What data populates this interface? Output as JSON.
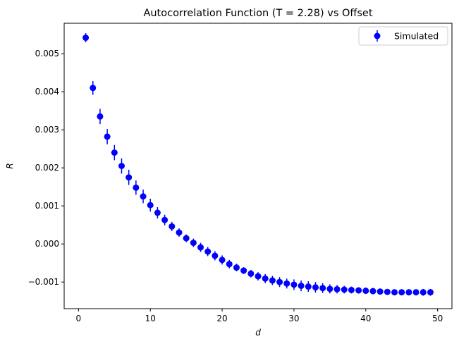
{
  "chart_data": {
    "type": "scatter",
    "title": "Autocorrelation Function (T = 2.28) vs Offset",
    "xlabel": "d",
    "ylabel": "R",
    "xlim": [
      -2,
      52
    ],
    "ylim": [
      -0.0017,
      0.0058
    ],
    "xticks": [
      0,
      10,
      20,
      30,
      40,
      50
    ],
    "yticks": [
      -0.001,
      0.0,
      0.001,
      0.002,
      0.003,
      0.004,
      0.005
    ],
    "xtick_labels": [
      "0",
      "10",
      "20",
      "30",
      "40",
      "50"
    ],
    "ytick_labels": [
      "−0.001",
      "0.000",
      "0.001",
      "0.002",
      "0.003",
      "0.004",
      "0.005"
    ],
    "legend": {
      "position": "top-right",
      "entries": [
        "Simulated"
      ]
    },
    "grid": false,
    "color": "#0000ff",
    "series": [
      {
        "name": "Simulated",
        "x": [
          1,
          2,
          3,
          4,
          5,
          6,
          7,
          8,
          9,
          10,
          11,
          12,
          13,
          14,
          15,
          16,
          17,
          18,
          19,
          20,
          21,
          22,
          23,
          24,
          25,
          26,
          27,
          28,
          29,
          30,
          31,
          32,
          33,
          34,
          35,
          36,
          37,
          38,
          39,
          40,
          41,
          42,
          43,
          44,
          45,
          46,
          47,
          48,
          49
        ],
        "y": [
          0.00542,
          0.0041,
          0.00335,
          0.00282,
          0.0024,
          0.00205,
          0.00175,
          0.00148,
          0.00125,
          0.00102,
          0.00082,
          0.00063,
          0.00046,
          0.0003,
          0.00015,
          3e-05,
          -9e-05,
          -0.0002,
          -0.00031,
          -0.00042,
          -0.00053,
          -0.00062,
          -0.0007,
          -0.00078,
          -0.00085,
          -0.00091,
          -0.00096,
          -0.001,
          -0.00104,
          -0.00107,
          -0.0011,
          -0.00112,
          -0.00114,
          -0.00116,
          -0.00118,
          -0.00119,
          -0.0012,
          -0.00121,
          -0.00122,
          -0.00123,
          -0.00124,
          -0.00125,
          -0.00126,
          -0.00127,
          -0.00127,
          -0.00127,
          -0.00127,
          -0.00127,
          -0.00127
        ],
        "yerr": [
          0.00012,
          0.00018,
          0.0002,
          0.0002,
          0.0002,
          0.0002,
          0.0002,
          0.00019,
          0.00018,
          0.00017,
          0.00015,
          0.00014,
          0.00012,
          0.00011,
          0.0001,
          0.00011,
          0.00012,
          0.00012,
          0.00012,
          0.00012,
          0.00011,
          0.0001,
          9e-05,
          0.0001,
          0.00011,
          0.00012,
          0.00012,
          0.00013,
          0.00013,
          0.00014,
          0.00014,
          0.00014,
          0.00014,
          0.00013,
          0.00012,
          0.00011,
          0.0001,
          9e-05,
          8e-05,
          8e-05,
          8e-05,
          7e-05,
          7e-05,
          7e-05,
          7e-05,
          8e-05,
          8e-05,
          9e-05,
          9e-05
        ]
      }
    ]
  }
}
